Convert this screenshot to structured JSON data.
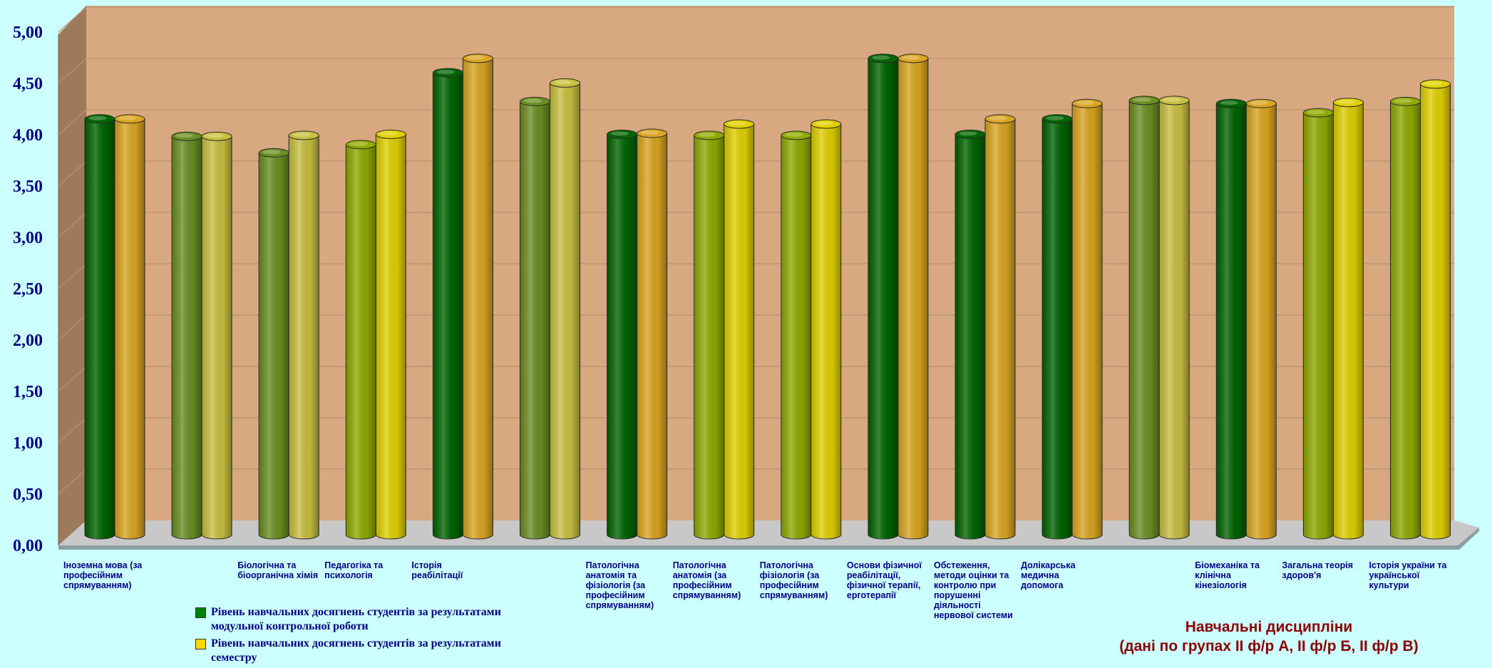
{
  "chart_data": {
    "type": "bar",
    "style": "3d-cylinder",
    "grid": true,
    "legend_position": "bottom-left",
    "categories": [
      "Іноземна мова (за професійним спрямуванням)",
      "",
      "Біологічна та біоорганічна хімія",
      "Педагогіка та психологія",
      "Історія реабілітації",
      "",
      "Патологічна анатомія та фізіологія (за професійним спрямуванням)",
      "Патологічна анатомія (за професійним спрямуванням)",
      "Патологічна фізіологія (за професійним спрямуванням)",
      "Основи фізичної реабілітації, фізичної терапії, ерготерапії",
      "Обстеження, методи оцінки та контролю при порушенні діяльності нервової системи",
      "Долікарська медична допомога",
      "",
      "Біомеханіка та клінічна кінезіологія",
      "Загальна теорія здоров'я",
      "Історія україни та української культури"
    ],
    "series": [
      {
        "name": "Рівень навчальних досягнень студентів за результатами модульної контрольної роботи",
        "values": [
          4.05,
          3.88,
          3.72,
          3.8,
          4.5,
          4.22,
          3.9,
          3.89,
          3.89,
          4.64,
          3.9,
          4.05,
          4.23,
          4.2,
          4.11,
          4.22
        ]
      },
      {
        "name": "Рівень навчальних досягнень студентів за результатами семестру",
        "values": [
          4.05,
          3.88,
          3.89,
          3.9,
          4.64,
          4.4,
          3.91,
          4.0,
          4.0,
          4.64,
          4.05,
          4.2,
          4.23,
          4.2,
          4.21,
          4.39
        ]
      }
    ],
    "bar_colors": {
      "left": [
        "#006400",
        "#6b8e23",
        "#6b8e23",
        "#8faa00",
        "#006400",
        "#6b8e23",
        "#006400",
        "#8faa00",
        "#8faa00",
        "#006400",
        "#006400",
        "#006400",
        "#6b8e23",
        "#006400",
        "#8faa00",
        "#8faa00"
      ],
      "right": [
        "#daa520",
        "#c8c040",
        "#c8c040",
        "#e0d000",
        "#daa520",
        "#c8c040",
        "#daa520",
        "#e0d000",
        "#e0d000",
        "#daa520",
        "#daa520",
        "#daa520",
        "#c8c040",
        "#daa520",
        "#e0d000",
        "#e0d000"
      ]
    },
    "legend_colors": [
      "#008000",
      "#ffd700"
    ],
    "yticks": [
      "0,00",
      "0,50",
      "1,00",
      "1,50",
      "2,00",
      "2,50",
      "3,00",
      "3,50",
      "4,00",
      "4,50",
      "5,00"
    ],
    "ylim": [
      0,
      5
    ],
    "xlabel": "Навчальні дисципліни\n(дані по групах ІІ ф/р А, ІІ ф/р Б, ІІ ф/р В)",
    "xlabel_line1": "Навчальні дисципліни",
    "xlabel_line2": "(дані по групах ІІ ф/р А, ІІ ф/р Б, ІІ ф/р В)",
    "ylabel": "",
    "title": ""
  }
}
